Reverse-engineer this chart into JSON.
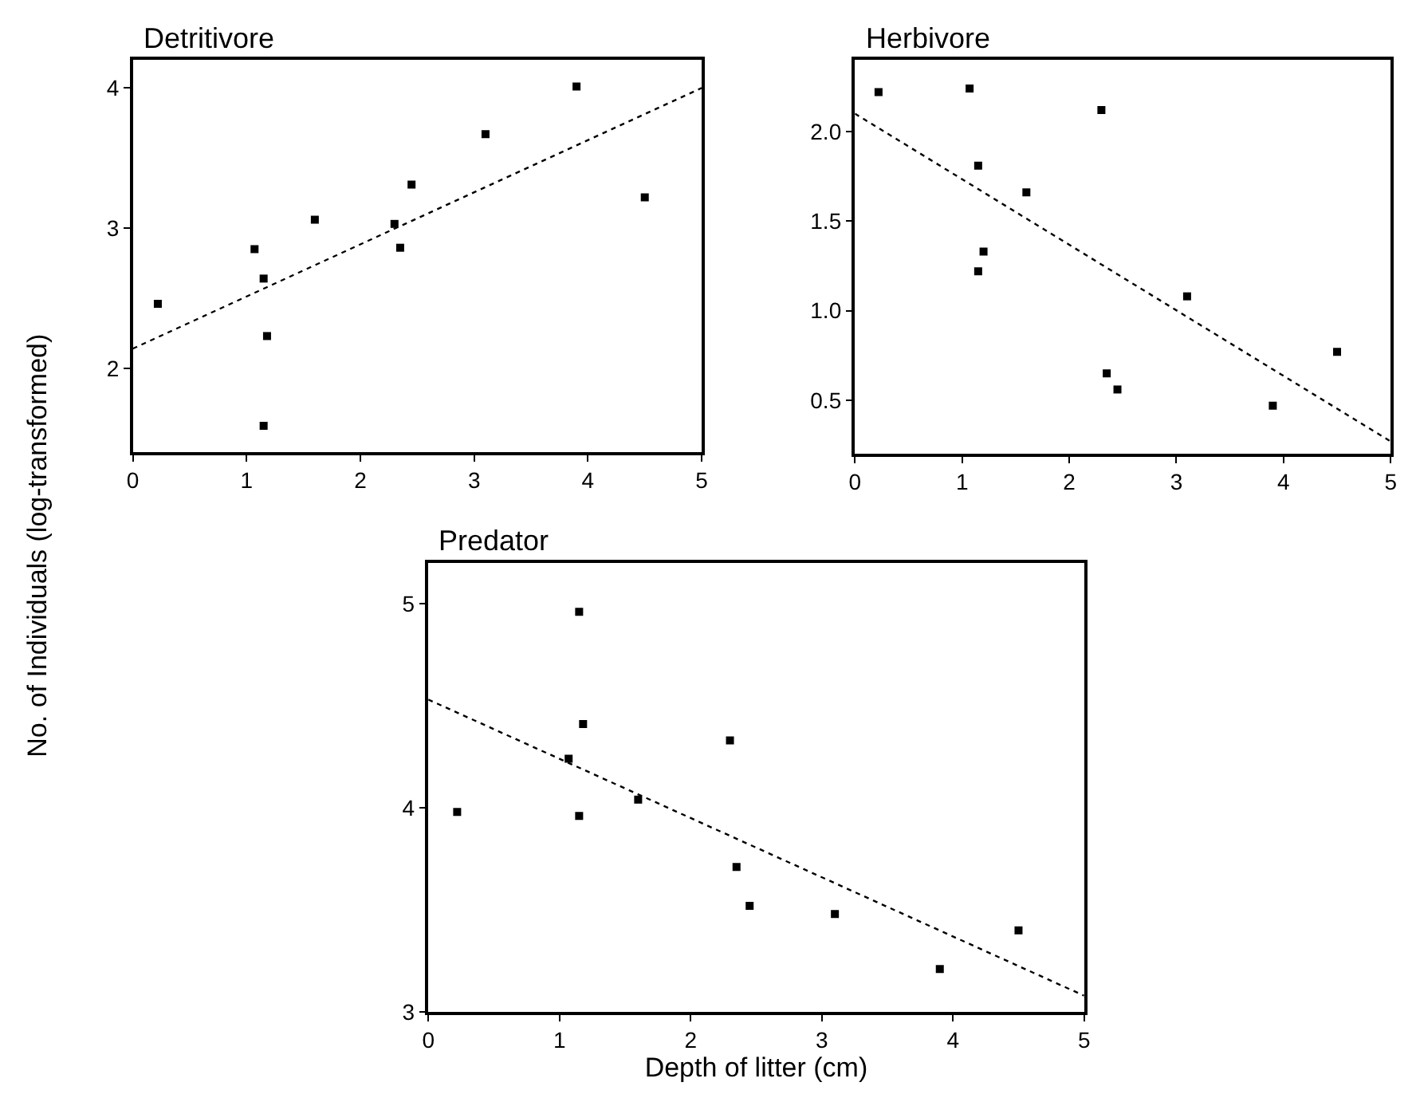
{
  "chart_data": [
    {
      "type": "scatter",
      "title": "Detritivore",
      "ylabel": "No. of Individuals (log-transformed)",
      "xlim": [
        0,
        5
      ],
      "ylim": [
        1.4,
        4.2
      ],
      "xticks": [
        0,
        1,
        2,
        3,
        4,
        5
      ],
      "yticks": [
        2,
        3,
        4
      ],
      "grid": false,
      "series": [
        {
          "color": "#000000",
          "marker": "square",
          "x": [
            0.22,
            1.07,
            1.15,
            1.18,
            1.15,
            1.6,
            2.3,
            2.35,
            2.45,
            3.1,
            3.9,
            4.5
          ],
          "values": [
            2.46,
            2.85,
            2.64,
            2.23,
            1.59,
            3.06,
            3.03,
            2.86,
            3.31,
            3.67,
            4.01,
            3.22
          ]
        },
        {
          "type": "line",
          "color": "#000000",
          "line_style": "dotted",
          "marker": "none",
          "x": [
            0,
            5
          ],
          "values": [
            2.14,
            4.0
          ]
        }
      ]
    },
    {
      "type": "scatter",
      "title": "Herbivore",
      "xlim": [
        0,
        5
      ],
      "ylim": [
        0.2,
        2.4
      ],
      "xticks": [
        0,
        1,
        2,
        3,
        4,
        5
      ],
      "yticks": [
        {
          "value": 0.5,
          "label": "0.5"
        },
        {
          "value": 1.0,
          "label": "1.0"
        },
        {
          "value": 1.5,
          "label": "1.5"
        },
        {
          "value": 2.0,
          "label": "2.0"
        }
      ],
      "grid": false,
      "series": [
        {
          "color": "#000000",
          "marker": "square",
          "x": [
            0.22,
            1.07,
            1.15,
            1.15,
            1.2,
            1.6,
            2.3,
            2.35,
            2.45,
            3.1,
            3.9,
            4.5
          ],
          "values": [
            2.22,
            2.24,
            1.81,
            1.22,
            1.33,
            1.66,
            2.12,
            0.65,
            0.56,
            1.08,
            0.47,
            0.77
          ]
        },
        {
          "type": "line",
          "color": "#000000",
          "line_style": "dotted",
          "marker": "none",
          "x": [
            0,
            5
          ],
          "values": [
            2.1,
            0.27
          ]
        }
      ]
    },
    {
      "type": "scatter",
      "title": "Predator",
      "xlabel": "Depth of litter (cm)",
      "xlim": [
        0,
        5
      ],
      "ylim": [
        3.0,
        5.2
      ],
      "xticks": [
        0,
        1,
        2,
        3,
        4,
        5
      ],
      "yticks": [
        3,
        4,
        5
      ],
      "grid": false,
      "series": [
        {
          "color": "#000000",
          "marker": "square",
          "x": [
            0.22,
            1.07,
            1.15,
            1.15,
            1.18,
            1.6,
            2.3,
            2.35,
            2.45,
            3.1,
            3.9,
            4.5
          ],
          "values": [
            3.98,
            4.24,
            4.96,
            3.96,
            4.41,
            4.04,
            4.33,
            3.71,
            3.52,
            3.48,
            3.21,
            3.4
          ]
        },
        {
          "type": "line",
          "color": "#000000",
          "line_style": "dotted",
          "marker": "none",
          "x": [
            0,
            5
          ],
          "values": [
            4.53,
            3.08
          ]
        }
      ]
    }
  ]
}
